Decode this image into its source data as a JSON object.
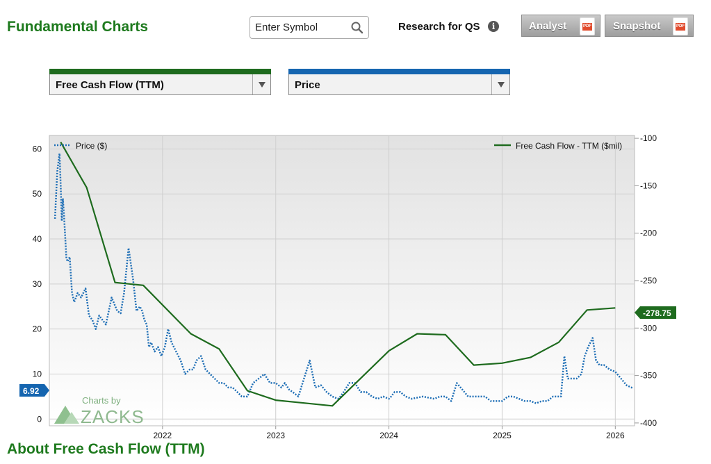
{
  "page": {
    "title": "Fundamental Charts",
    "about_heading": "About Free Cash Flow (TTM)"
  },
  "search": {
    "placeholder": "Enter Symbol",
    "icon": "search-icon"
  },
  "research": {
    "label": "Research for QS",
    "icon": "info-icon"
  },
  "buttons": {
    "analyst": "Analyst",
    "snapshot": "Snapshot",
    "pdf_badge": "PDF"
  },
  "selectors": {
    "primary": {
      "value": "Free Cash Flow (TTM)",
      "accent": "#1e6b1e"
    },
    "secondary": {
      "value": "Price",
      "accent": "#1565b0"
    }
  },
  "colors": {
    "price": "#1f6fb6",
    "fcf": "#1e6b1e",
    "title": "#1e7a1e"
  },
  "watermark": {
    "line1": "Charts by",
    "line2": "ZACKS"
  },
  "chart_data": {
    "type": "line",
    "x_ticks": [
      "2022",
      "2023",
      "2024",
      "2025",
      "2026"
    ],
    "y_left": {
      "ticks": [
        0,
        10,
        20,
        30,
        40,
        50,
        60
      ],
      "range": [
        -1.5,
        63
      ]
    },
    "y_right": {
      "ticks": [
        -100,
        -150,
        -200,
        -250,
        -300,
        -350,
        -400
      ],
      "range": [
        -403,
        -97
      ]
    },
    "grid": true,
    "legend": {
      "left": "Price ($)",
      "right": "Free Cash Flow - TTM ($mil)"
    },
    "current_labels": {
      "price": "6.92",
      "fcf": "-278.75"
    },
    "series": [
      {
        "name": "Price ($)",
        "axis": "left",
        "style": "dotted",
        "x": [
          2021.05,
          2021.07,
          2021.09,
          2021.1,
          2021.11,
          2021.12,
          2021.13,
          2021.15,
          2021.16,
          2021.18,
          2021.2,
          2021.22,
          2021.25,
          2021.28,
          2021.32,
          2021.35,
          2021.38,
          2021.41,
          2021.44,
          2021.47,
          2021.5,
          2021.55,
          2021.6,
          2021.63,
          2021.66,
          2021.7,
          2021.74,
          2021.77,
          2021.8,
          2021.82,
          2021.84,
          2021.86,
          2021.88,
          2021.9,
          2021.93,
          2021.96,
          2021.99,
          2022.02,
          2022.05,
          2022.08,
          2022.12,
          2022.16,
          2022.2,
          2022.24,
          2022.27,
          2022.3,
          2022.34,
          2022.38,
          2022.42,
          2022.46,
          2022.5,
          2022.54,
          2022.58,
          2022.62,
          2022.66,
          2022.7,
          2022.75,
          2022.8,
          2022.85,
          2022.9,
          2022.95,
          2023.0,
          2023.05,
          2023.08,
          2023.12,
          2023.15,
          2023.2,
          2023.25,
          2023.3,
          2023.35,
          2023.4,
          2023.45,
          2023.5,
          2023.55,
          2023.57,
          2023.6,
          2023.65,
          2023.7,
          2023.75,
          2023.8,
          2023.85,
          2023.9,
          2023.95,
          2024.0,
          2024.02,
          2024.05,
          2024.1,
          2024.15,
          2024.2,
          2024.3,
          2024.4,
          2024.45,
          2024.5,
          2024.55,
          2024.6,
          2024.7,
          2024.8,
          2024.85,
          2024.9,
          2025.0,
          2025.05,
          2025.1,
          2025.2,
          2025.25,
          2025.3,
          2025.35,
          2025.4,
          2025.45,
          2025.48,
          2025.52,
          2025.55,
          2025.58,
          2025.62,
          2025.66,
          2025.7,
          2025.73,
          2025.76,
          2025.8,
          2025.83,
          2025.86,
          2025.9,
          2025.95,
          2026.0,
          2026.05,
          2026.1,
          2026.15
        ],
        "y": [
          44.5,
          55,
          59,
          52,
          44,
          49,
          45,
          36,
          35,
          36,
          28,
          26,
          28,
          27,
          29,
          23,
          22,
          20,
          23,
          22,
          21,
          27,
          24,
          23.5,
          28,
          38,
          31,
          24,
          25,
          24,
          22,
          21,
          16,
          17,
          15,
          16,
          14,
          16,
          20,
          17,
          15,
          13,
          10,
          11,
          11,
          13,
          14,
          11,
          10,
          9,
          8,
          8,
          7,
          7,
          6,
          5,
          5,
          8,
          9,
          10,
          8,
          8,
          7,
          8,
          6.5,
          6,
          5,
          9,
          13,
          7,
          7.5,
          6,
          5,
          4.5,
          5,
          6,
          8,
          8,
          6,
          6,
          5,
          4.5,
          5,
          4.5,
          5,
          6,
          6,
          5,
          4.5,
          5,
          4.5,
          5,
          5,
          4,
          8,
          5,
          5,
          5,
          4,
          4,
          5,
          5,
          4,
          4,
          3.5,
          4,
          4,
          5,
          5,
          5,
          14,
          9,
          9,
          9,
          10,
          14,
          16,
          18,
          13,
          12,
          12,
          11,
          10.5,
          9,
          7.5,
          6.92
        ]
      },
      {
        "name": "Free Cash Flow - TTM ($mil)",
        "axis": "right",
        "style": "solid",
        "x": [
          2021.1,
          2021.33,
          2021.58,
          2021.83,
          2022.25,
          2022.5,
          2022.75,
          2023.0,
          2023.25,
          2023.5,
          2024.0,
          2024.25,
          2024.5,
          2024.75,
          2025.0,
          2025.25,
          2025.5,
          2025.75,
          2026.0
        ],
        "y": [
          -104,
          -152,
          -252,
          -255,
          -306,
          -322,
          -366,
          -376,
          -379,
          -382,
          -324,
          -306,
          -307,
          -339,
          -337,
          -331,
          -315,
          -281,
          -278.75
        ]
      }
    ]
  }
}
